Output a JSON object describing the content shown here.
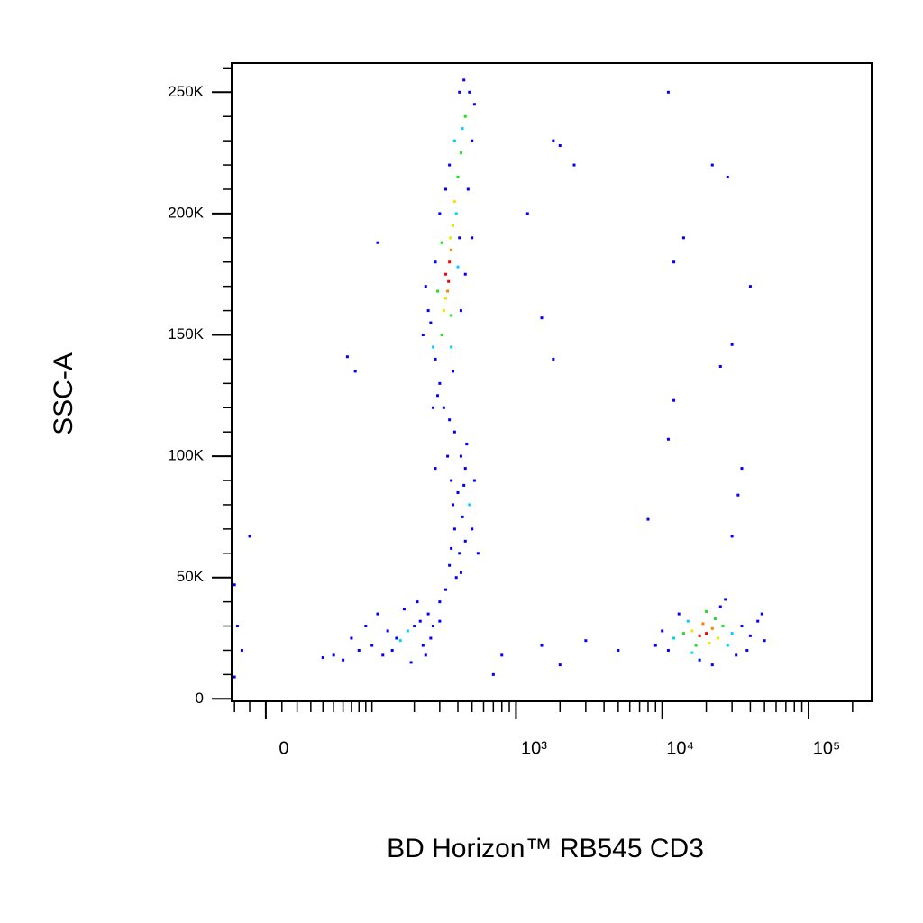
{
  "chart_data": {
    "type": "scatter",
    "x_label": "BD Horizon™ RB545  CD3",
    "y_label": "SSC-A",
    "xscale": "biexponential",
    "xlim": [
      -22,
      270000
    ],
    "xticks": [
      0,
      {
        "value": 1000,
        "label": "10³"
      },
      {
        "value": 10000,
        "label": "10⁴"
      },
      {
        "value": 100000,
        "label": "10⁵"
      }
    ],
    "xminorticks": [
      -20,
      -10,
      10,
      20,
      30,
      40,
      50,
      60,
      70,
      80,
      90,
      100,
      200,
      300,
      400,
      500,
      600,
      700,
      800,
      900,
      2000,
      3000,
      4000,
      5000,
      6000,
      7000,
      8000,
      9000,
      20000,
      30000,
      40000,
      50000,
      60000,
      70000,
      80000,
      90000,
      200000
    ],
    "ylim": [
      -1000,
      262000
    ],
    "yticks": [
      0,
      {
        "value": 50000,
        "label": "50K"
      },
      {
        "value": 100000,
        "label": "100K"
      },
      {
        "value": 150000,
        "label": "150K"
      },
      {
        "value": 200000,
        "label": "200K"
      },
      {
        "value": 250000,
        "label": "250K"
      }
    ],
    "yminorticks": [
      10000,
      20000,
      30000,
      40000,
      60000,
      70000,
      80000,
      90000,
      110000,
      120000,
      130000,
      140000,
      160000,
      170000,
      180000,
      190000,
      210000,
      220000,
      230000,
      240000,
      260000
    ],
    "x": [
      330,
      350,
      340,
      360,
      320,
      370,
      380,
      310,
      400,
      420,
      330,
      345,
      355,
      280,
      300,
      260,
      240,
      450,
      480,
      430,
      500,
      390,
      410,
      300,
      280,
      450,
      470,
      520,
      440,
      290,
      320,
      360,
      270,
      250,
      230,
      420,
      500,
      380,
      350,
      410,
      330,
      370,
      310,
      290,
      400,
      360,
      270,
      350,
      380,
      420,
      450,
      360,
      400,
      480,
      430,
      380,
      450,
      410,
      350,
      390,
      330,
      300,
      460,
      520,
      340,
      500,
      370,
      440,
      280,
      550,
      420,
      360,
      250,
      200,
      150,
      100,
      180,
      220,
      120,
      80,
      60,
      140,
      260,
      300,
      170,
      90,
      230,
      190,
      70,
      50,
      40,
      110,
      210,
      160,
      130,
      270,
      240,
      20000,
      18000,
      22000,
      16000,
      24000,
      19000,
      21000,
      14000,
      26000,
      17000,
      23000,
      12000,
      30000,
      15000,
      28000,
      11000,
      35000,
      40000,
      13000,
      25000,
      32000,
      18000,
      10000,
      45000,
      50000,
      22000,
      27000,
      9000,
      38000,
      20000,
      16000,
      48000,
      11000,
      22000,
      28000,
      12000,
      14000,
      40000,
      25000,
      12000,
      30000,
      11000,
      35000,
      33000,
      8000,
      30000,
      2000,
      2500,
      1800,
      1500,
      1800,
      110,
      65,
      75,
      -10,
      -20,
      -18,
      -15,
      5000,
      3000,
      1500,
      800,
      2000,
      700,
      -20,
      1200
    ],
    "y": [
      175000,
      180000,
      168000,
      185000,
      160000,
      195000,
      205000,
      150000,
      215000,
      225000,
      165000,
      172000,
      190000,
      140000,
      130000,
      155000,
      170000,
      240000,
      250000,
      235000,
      230000,
      200000,
      190000,
      200000,
      180000,
      175000,
      210000,
      245000,
      255000,
      125000,
      120000,
      145000,
      145000,
      160000,
      150000,
      160000,
      190000,
      230000,
      220000,
      250000,
      210000,
      135000,
      188000,
      168000,
      178000,
      158000,
      120000,
      115000,
      110000,
      100000,
      95000,
      90000,
      85000,
      80000,
      75000,
      70000,
      65000,
      60000,
      55000,
      50000,
      45000,
      40000,
      105000,
      90000,
      100000,
      70000,
      80000,
      88000,
      95000,
      60000,
      52000,
      62000,
      35000,
      30000,
      25000,
      22000,
      28000,
      32000,
      18000,
      20000,
      16000,
      20000,
      25000,
      32000,
      37000,
      30000,
      22000,
      15000,
      25000,
      18000,
      17000,
      35000,
      40000,
      24000,
      28000,
      30000,
      18000,
      27000,
      26000,
      29000,
      28000,
      25000,
      31000,
      23000,
      27000,
      30000,
      22000,
      33000,
      25000,
      27000,
      32000,
      22000,
      20000,
      30000,
      26000,
      35000,
      38000,
      18000,
      16000,
      28000,
      32000,
      24000,
      14000,
      41000,
      22000,
      20000,
      36000,
      19000,
      35000,
      250000,
      220000,
      215000,
      180000,
      190000,
      170000,
      137000,
      123000,
      146000,
      107000,
      95000,
      84000,
      74000,
      67000,
      228000,
      220000,
      230000,
      157000,
      140000,
      188000,
      141000,
      135000,
      67000,
      47000,
      30000,
      20000,
      20000,
      24000,
      22000,
      18000,
      14000,
      10000,
      9000,
      200000
    ],
    "colors": [
      "#ff0000",
      "#ff0000",
      "#ff8000",
      "#ff8000",
      "#e8e800",
      "#e8e800",
      "#e8e800",
      "#20e020",
      "#20e020",
      "#20e020",
      "#e8e800",
      "#ff0000",
      "#e8e800",
      "#0000ff",
      "#0000ff",
      "#0000ff",
      "#0000ff",
      "#20e020",
      "#0000ff",
      "#00d0ff",
      "#0000ff",
      "#00d0ff",
      "#0000ff",
      "#0000ff",
      "#0000ff",
      "#0000ff",
      "#0000ff",
      "#0000ff",
      "#0000ff",
      "#0000ff",
      "#0000ff",
      "#00d0ff",
      "#00d0ff",
      "#0000ff",
      "#0000ff",
      "#0000ff",
      "#0000ff",
      "#00d0ff",
      "#0000ff",
      "#0000ff",
      "#0000ff",
      "#0000ff",
      "#20e020",
      "#20e020",
      "#00d0ff",
      "#20e020",
      "#0000ff",
      "#0000ff",
      "#0000ff",
      "#0000ff",
      "#0000ff",
      "#0000ff",
      "#0000ff",
      "#00d0ff",
      "#0000ff",
      "#0000ff",
      "#0000ff",
      "#0000ff",
      "#0000ff",
      "#0000ff",
      "#0000ff",
      "#0000ff",
      "#0000ff",
      "#0000ff",
      "#0000ff",
      "#0000ff",
      "#0000ff",
      "#0000ff",
      "#0000ff",
      "#0000ff",
      "#0000ff",
      "#0000ff",
      "#0000ff",
      "#0000ff",
      "#0000ff",
      "#0000ff",
      "#00d0ff",
      "#0000ff",
      "#0000ff",
      "#0000ff",
      "#0000ff",
      "#0000ff",
      "#0000ff",
      "#0000ff",
      "#0000ff",
      "#0000ff",
      "#0000ff",
      "#0000ff",
      "#0000ff",
      "#0000ff",
      "#0000ff",
      "#0000ff",
      "#0000ff",
      "#00d0ff",
      "#0000ff",
      "#0000ff",
      "#0000ff",
      "#ff0000",
      "#ff0000",
      "#ff8000",
      "#e8e800",
      "#e8e800",
      "#ff8000",
      "#e8e800",
      "#20e020",
      "#20e020",
      "#20e020",
      "#20e020",
      "#00d0ff",
      "#00d0ff",
      "#00d0ff",
      "#00d0ff",
      "#0000ff",
      "#0000ff",
      "#0000ff",
      "#0000ff",
      "#0000ff",
      "#0000ff",
      "#0000ff",
      "#0000ff",
      "#0000ff",
      "#0000ff",
      "#0000ff",
      "#0000ff",
      "#0000ff",
      "#0000ff",
      "#20e020",
      "#00d0ff",
      "#0000ff",
      "#0000ff",
      "#0000ff",
      "#0000ff",
      "#0000ff",
      "#0000ff",
      "#0000ff",
      "#0000ff",
      "#0000ff",
      "#0000ff",
      "#0000ff",
      "#0000ff",
      "#0000ff",
      "#0000ff",
      "#0000ff",
      "#0000ff",
      "#0000ff",
      "#0000ff",
      "#0000ff",
      "#0000ff",
      "#0000ff",
      "#0000ff",
      "#0000ff",
      "#0000ff",
      "#0000ff",
      "#0000ff",
      "#0000ff",
      "#0000ff",
      "#0000ff",
      "#0000ff",
      "#0000ff",
      "#0000ff",
      "#0000ff",
      "#0000ff",
      "#0000ff"
    ]
  }
}
